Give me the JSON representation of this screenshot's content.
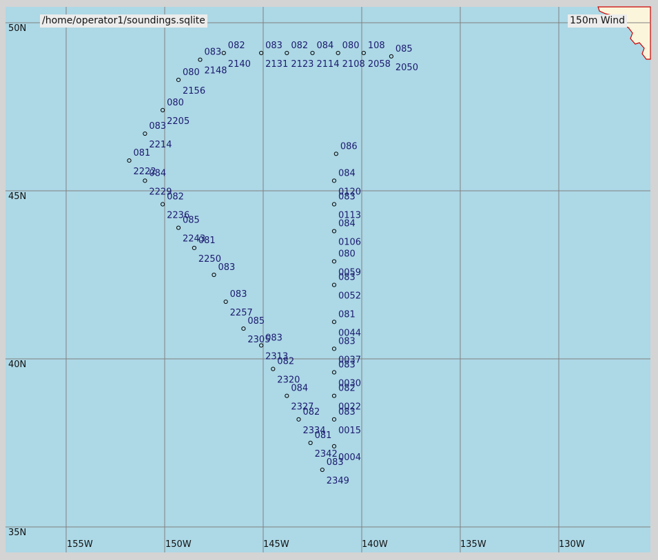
{
  "file_title": "/home/operator1/soundings.sqlite",
  "field_title": "150m Wind",
  "colors": {
    "ocean": "#add8e6",
    "land": "#fbf5dc",
    "coast": "#cc0000",
    "grid": "#808080",
    "text": "#1a1a6e",
    "barb": "#000000",
    "frame": "#d4d4d4"
  },
  "lat_labels": [
    "50N",
    "45N",
    "40N",
    "35N"
  ],
  "lon_labels": [
    "155W",
    "150W",
    "145W",
    "140W",
    "135W",
    "130W"
  ],
  "map_extent": {
    "lon_min": -157,
    "lon_max": -126.5,
    "lat_min": 34.75,
    "lat_max": 50.8
  },
  "stations": [
    {
      "lon": -147.0,
      "lat": 49.1,
      "label_top": "082",
      "label_bottom": "2140"
    },
    {
      "lon": -145.1,
      "lat": 49.1,
      "label_top": "083",
      "label_bottom": "2131"
    },
    {
      "lon": -143.8,
      "lat": 49.1,
      "label_top": "082",
      "label_bottom": "2123"
    },
    {
      "lon": -142.5,
      "lat": 49.1,
      "label_top": "084",
      "label_bottom": "2114"
    },
    {
      "lon": -141.2,
      "lat": 49.1,
      "label_top": "080",
      "label_bottom": "2108"
    },
    {
      "lon": -139.9,
      "lat": 49.1,
      "label_top": "108",
      "label_bottom": "2058"
    },
    {
      "lon": -138.5,
      "lat": 49.0,
      "label_top": "085",
      "label_bottom": "2050"
    },
    {
      "lon": -148.2,
      "lat": 48.9,
      "label_top": "083",
      "label_bottom": "2148"
    },
    {
      "lon": -149.3,
      "lat": 48.3,
      "label_top": "080",
      "label_bottom": "2156"
    },
    {
      "lon": -150.1,
      "lat": 47.4,
      "label_top": "080",
      "label_bottom": "2205"
    },
    {
      "lon": -151.0,
      "lat": 46.7,
      "label_top": "083",
      "label_bottom": "2214"
    },
    {
      "lon": -151.8,
      "lat": 45.9,
      "label_top": "081",
      "label_bottom": "2222"
    },
    {
      "lon": -151.0,
      "lat": 45.3,
      "label_top": "084",
      "label_bottom": "2229"
    },
    {
      "lon": -150.1,
      "lat": 44.6,
      "label_top": "082",
      "label_bottom": "2236"
    },
    {
      "lon": -149.3,
      "lat": 43.9,
      "label_top": "085",
      "label_bottom": "2243"
    },
    {
      "lon": -148.5,
      "lat": 43.3,
      "label_top": "081",
      "label_bottom": "2250"
    },
    {
      "lon": -147.5,
      "lat": 42.5,
      "label_top": "083",
      "label_bottom": ""
    },
    {
      "lon": -146.9,
      "lat": 41.7,
      "label_top": "083",
      "label_bottom": "2257"
    },
    {
      "lon": -146.0,
      "lat": 40.9,
      "label_top": "085",
      "label_bottom": "2305"
    },
    {
      "lon": -145.1,
      "lat": 40.4,
      "label_top": "083",
      "label_bottom": "2313"
    },
    {
      "lon": -144.5,
      "lat": 39.7,
      "label_top": "082",
      "label_bottom": "2320"
    },
    {
      "lon": -143.8,
      "lat": 38.9,
      "label_top": "084",
      "label_bottom": "2327"
    },
    {
      "lon": -143.2,
      "lat": 38.2,
      "label_top": "082",
      "label_bottom": "2334"
    },
    {
      "lon": -142.6,
      "lat": 37.5,
      "label_top": "081",
      "label_bottom": "2342"
    },
    {
      "lon": -142.0,
      "lat": 36.7,
      "label_top": "083",
      "label_bottom": "2349"
    },
    {
      "lon": -141.3,
      "lat": 46.1,
      "label_top": "086",
      "label_bottom": ""
    },
    {
      "lon": -141.4,
      "lat": 45.3,
      "label_top": "084",
      "label_bottom": "0120"
    },
    {
      "lon": -141.4,
      "lat": 44.6,
      "label_top": "083",
      "label_bottom": "0113"
    },
    {
      "lon": -141.4,
      "lat": 43.8,
      "label_top": "084",
      "label_bottom": "0106"
    },
    {
      "lon": -141.4,
      "lat": 42.9,
      "label_top": "080",
      "label_bottom": "0059"
    },
    {
      "lon": -141.4,
      "lat": 42.2,
      "label_top": "083",
      "label_bottom": "0052"
    },
    {
      "lon": -141.4,
      "lat": 41.1,
      "label_top": "081",
      "label_bottom": "0044"
    },
    {
      "lon": -141.4,
      "lat": 40.3,
      "label_top": "083",
      "label_bottom": "0037"
    },
    {
      "lon": -141.4,
      "lat": 39.6,
      "label_top": "083",
      "label_bottom": "0030"
    },
    {
      "lon": -141.4,
      "lat": 38.9,
      "label_top": "082",
      "label_bottom": "0022"
    },
    {
      "lon": -141.4,
      "lat": 38.2,
      "label_top": "083",
      "label_bottom": "0015"
    },
    {
      "lon": -141.4,
      "lat": 37.4,
      "label_top": "",
      "label_bottom": "0004"
    }
  ]
}
